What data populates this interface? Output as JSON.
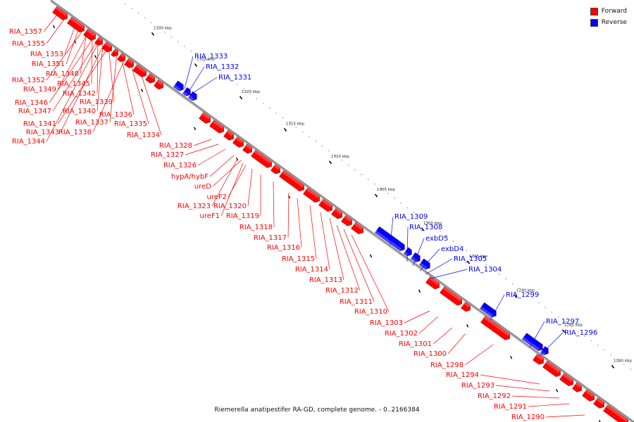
{
  "title": "Riemerella anatipestifer RA-GD, complete genome. - 0..2166384",
  "legend": [
    {
      "label": "Forward",
      "color": "#ff0000"
    },
    {
      "label": "Reverse",
      "color": "#0000ff"
    }
  ],
  "colors": {
    "forward": "#ff0000",
    "reverse": "#0000ff",
    "backbone": "#888888"
  },
  "ticks": [
    "1330 kbp",
    "1325 kbp",
    "1320 kbp",
    "1315 kbp",
    "1310 kbp",
    "1305 kbp",
    "1300 kbp",
    "1295 kbp",
    "1290 kbp",
    "1285 kbp",
    "1280 kbp"
  ],
  "genes": [
    {
      "name": "RIA_1357",
      "strand": "forward"
    },
    {
      "name": "RIA_1355",
      "strand": "forward"
    },
    {
      "name": "RIA_1353",
      "strand": "forward"
    },
    {
      "name": "RIA_1351",
      "strand": "forward"
    },
    {
      "name": "RIA_1348",
      "strand": "forward"
    },
    {
      "name": "RIA_1352",
      "strand": "forward"
    },
    {
      "name": "RIA_1345",
      "strand": "forward"
    },
    {
      "name": "RIA_1349",
      "strand": "forward"
    },
    {
      "name": "RIA_1342",
      "strand": "forward"
    },
    {
      "name": "RIA_1346",
      "strand": "forward"
    },
    {
      "name": "RIA_1339",
      "strand": "forward"
    },
    {
      "name": "RIA_1347",
      "strand": "forward"
    },
    {
      "name": "RIA_1340",
      "strand": "forward"
    },
    {
      "name": "RIA_1336",
      "strand": "forward"
    },
    {
      "name": "RIA_1341",
      "strand": "forward"
    },
    {
      "name": "RIA_1337",
      "strand": "forward"
    },
    {
      "name": "RIA_1335",
      "strand": "forward"
    },
    {
      "name": "RIA_1343",
      "strand": "forward"
    },
    {
      "name": "RIA_1338",
      "strand": "forward"
    },
    {
      "name": "RIA_1334",
      "strand": "forward"
    },
    {
      "name": "RIA_1344",
      "strand": "forward"
    },
    {
      "name": "RIA_1333",
      "strand": "reverse"
    },
    {
      "name": "RIA_1332",
      "strand": "reverse"
    },
    {
      "name": "RIA_1331",
      "strand": "reverse"
    },
    {
      "name": "RIA_1328",
      "strand": "forward"
    },
    {
      "name": "RIA_1327",
      "strand": "forward"
    },
    {
      "name": "RIA_1326",
      "strand": "forward"
    },
    {
      "name": "hypA/hybF",
      "strand": "forward"
    },
    {
      "name": "ureD",
      "strand": "forward"
    },
    {
      "name": "ureF2",
      "strand": "forward"
    },
    {
      "name": "RIA_1323",
      "strand": "forward"
    },
    {
      "name": "RIA_1320",
      "strand": "forward"
    },
    {
      "name": "ureF1",
      "strand": "forward"
    },
    {
      "name": "RIA_1319",
      "strand": "forward"
    },
    {
      "name": "RIA_1318",
      "strand": "forward"
    },
    {
      "name": "RIA_1317",
      "strand": "forward"
    },
    {
      "name": "RIA_1316",
      "strand": "forward"
    },
    {
      "name": "RIA_1315",
      "strand": "forward"
    },
    {
      "name": "RIA_1314",
      "strand": "forward"
    },
    {
      "name": "RIA_1313",
      "strand": "forward"
    },
    {
      "name": "RIA_1312",
      "strand": "forward"
    },
    {
      "name": "RIA_1311",
      "strand": "forward"
    },
    {
      "name": "RIA_1310",
      "strand": "forward"
    },
    {
      "name": "RIA_1309",
      "strand": "reverse"
    },
    {
      "name": "RIA_1308",
      "strand": "reverse"
    },
    {
      "name": "exbD5",
      "strand": "reverse"
    },
    {
      "name": "exbD4",
      "strand": "reverse"
    },
    {
      "name": "RIA_1305",
      "strand": "reverse"
    },
    {
      "name": "RIA_1304",
      "strand": "reverse"
    },
    {
      "name": "RIA_1303",
      "strand": "forward"
    },
    {
      "name": "RIA_1302",
      "strand": "forward"
    },
    {
      "name": "RIA_1301",
      "strand": "forward"
    },
    {
      "name": "RIA_1300",
      "strand": "forward"
    },
    {
      "name": "RIA_1299",
      "strand": "reverse"
    },
    {
      "name": "RIA_1298",
      "strand": "forward"
    },
    {
      "name": "RIA_1297",
      "strand": "reverse"
    },
    {
      "name": "RIA_1296",
      "strand": "reverse"
    },
    {
      "name": "RIA_1294",
      "strand": "forward"
    },
    {
      "name": "RIA_1293",
      "strand": "forward"
    },
    {
      "name": "RIA_1292",
      "strand": "forward"
    },
    {
      "name": "RIA_1291",
      "strand": "forward"
    },
    {
      "name": "RIA_1290",
      "strand": "forward"
    }
  ]
}
